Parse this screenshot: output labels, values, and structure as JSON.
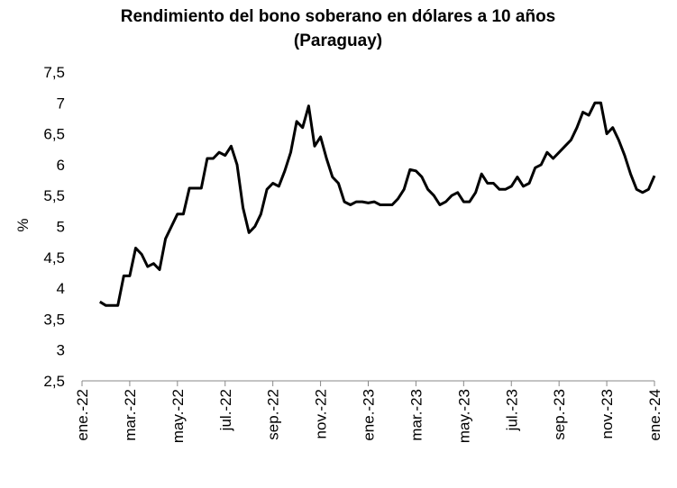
{
  "chart_data": {
    "type": "line",
    "title": [
      "Rendimiento del bono soberano en dólares a 10 años",
      "(Paraguay)"
    ],
    "y_label": "%",
    "color": "#000000",
    "categories": [
      "ene.-22",
      null,
      null,
      null,
      null,
      null,
      null,
      null,
      "mar.-22",
      null,
      null,
      null,
      null,
      null,
      null,
      null,
      "may.-22",
      null,
      null,
      null,
      null,
      null,
      null,
      null,
      "jul.-22",
      null,
      null,
      null,
      null,
      null,
      null,
      null,
      "sep.-22",
      null,
      null,
      null,
      null,
      null,
      null,
      null,
      "nov.-22",
      null,
      null,
      null,
      null,
      null,
      null,
      null,
      "ene.-23",
      null,
      null,
      null,
      null,
      null,
      null,
      null,
      "mar.-23",
      null,
      null,
      null,
      null,
      null,
      null,
      null,
      "may.-23",
      null,
      null,
      null,
      null,
      null,
      null,
      null,
      "jul.-23",
      null,
      null,
      null,
      null,
      null,
      null,
      null,
      "sep.-23",
      null,
      null,
      null,
      null,
      null,
      null,
      null,
      "nov.-23",
      null,
      null,
      null,
      null,
      null,
      null,
      null,
      "ene.-24"
    ],
    "values": [
      null,
      null,
      null,
      3.78,
      3.72,
      3.72,
      3.72,
      4.2,
      4.2,
      4.65,
      4.55,
      4.35,
      4.4,
      4.3,
      4.8,
      5.0,
      5.2,
      5.2,
      5.62,
      5.62,
      5.62,
      6.1,
      6.1,
      6.2,
      6.15,
      6.3,
      6.0,
      5.3,
      4.9,
      5.0,
      5.2,
      5.6,
      5.7,
      5.65,
      5.9,
      6.2,
      6.7,
      6.6,
      6.95,
      6.3,
      6.45,
      6.1,
      5.8,
      5.7,
      5.4,
      5.35,
      5.4,
      5.4,
      5.38,
      5.4,
      5.35,
      5.35,
      5.35,
      5.45,
      5.6,
      5.92,
      5.9,
      5.8,
      5.6,
      5.5,
      5.35,
      5.4,
      5.5,
      5.55,
      5.4,
      5.4,
      5.55,
      5.85,
      5.7,
      5.7,
      5.6,
      5.6,
      5.65,
      5.8,
      5.65,
      5.7,
      5.95,
      6.0,
      6.2,
      6.1,
      6.2,
      6.3,
      6.4,
      6.6,
      6.85,
      6.8,
      7.0,
      7.0,
      6.5,
      6.6,
      6.4,
      6.15,
      5.85,
      5.6,
      5.55,
      5.6,
      5.82
    ],
    "ylim": [
      2.5,
      7.5
    ],
    "yticks": [
      {
        "value": 2.5,
        "label": "2,5"
      },
      3,
      {
        "value": 3.5,
        "label": "3,5"
      },
      4,
      {
        "value": 4.5,
        "label": "4,5"
      },
      5,
      {
        "value": 5.5,
        "label": "5,5"
      },
      6,
      {
        "value": 6.5,
        "label": "6,5"
      },
      7,
      {
        "value": 7.5,
        "label": "7,5"
      }
    ],
    "grid": false
  }
}
